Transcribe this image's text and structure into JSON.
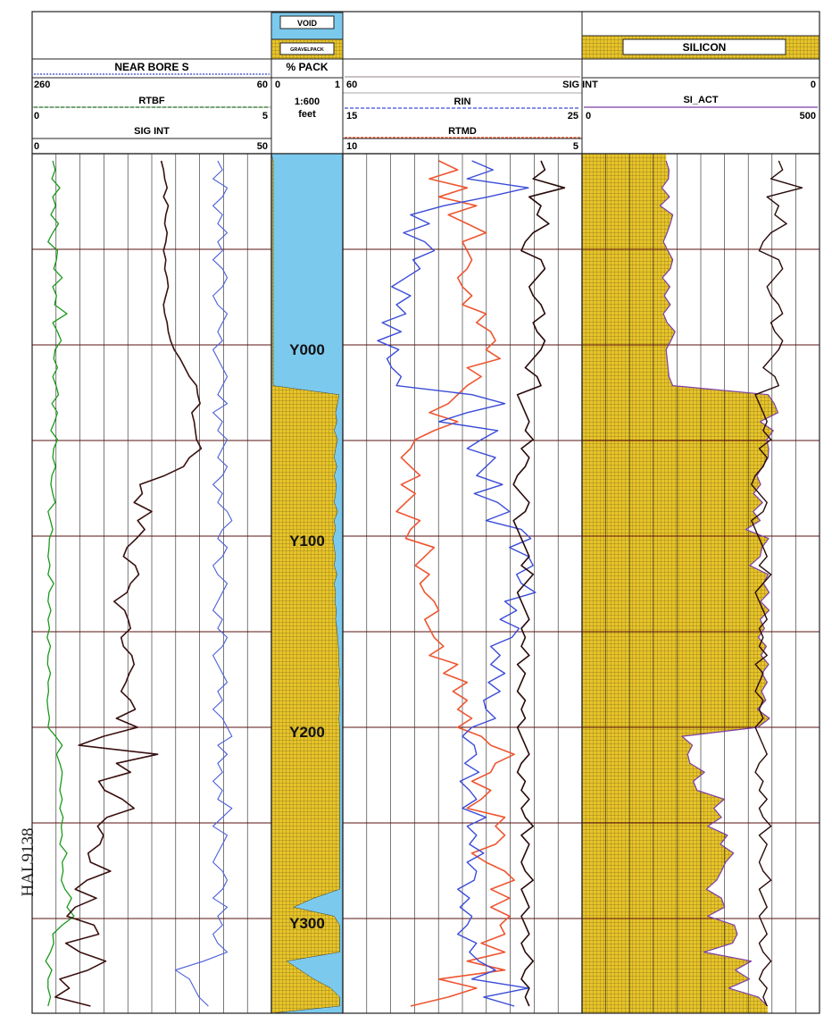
{
  "figure_id": "HAL9138",
  "legend": {
    "void_label": "VOID",
    "gravelpack_label": "GRAVELPACK",
    "silicon_label": "SILICON"
  },
  "headers": {
    "track1": [
      {
        "name": "NEAR BORE S",
        "left": "260",
        "right": "60"
      },
      {
        "name": "RTBF",
        "left": "0",
        "right": "5"
      },
      {
        "name": "SIG INT",
        "left": "0",
        "right": "50"
      }
    ],
    "depth": {
      "name": "% PACK",
      "left": "0",
      "right": "1",
      "scale": "1:600",
      "unit": "feet"
    },
    "track3": [
      {
        "name": "SIG INT",
        "left": "60",
        "right": "",
        "spanning": true
      },
      {
        "name": "RIN",
        "left": "15",
        "right": "25"
      },
      {
        "name": "RTMD",
        "left": "10",
        "right": "5"
      }
    ],
    "track4": [
      {
        "name": "SI_ACT",
        "left": "0",
        "right": "500"
      }
    ],
    "track34_right": "0"
  },
  "depth_labels": [
    "Y000",
    "Y100",
    "Y200",
    "Y300"
  ],
  "colors": {
    "void": "#7cc9ee",
    "gravel": "#e8c42a",
    "gravel_hatch": "#8a7418",
    "rtbf": "#1a9a1a",
    "near_bore": "#3a1010",
    "sig_int_track1": "#4a5fd8",
    "rin": "#3a4cd8",
    "rtmd": "#ee5530",
    "sig_int_track3": "#2a0a0a",
    "si_act_outline": "#7a3fa8",
    "grid": "#222222",
    "depth_grid": "#5a1010"
  },
  "chart_data": {
    "type": "line",
    "depth_axis": {
      "labels": [
        "Y000",
        "Y100",
        "Y200",
        "Y300"
      ],
      "interval": 100
    },
    "tracks": [
      {
        "name": "Track 1",
        "series": [
          {
            "name": "NEAR BORE S",
            "scale": [
              260,
              60
            ],
            "values": [
              152,
              150,
              149,
              147,
              150,
              146,
              148,
              149,
              147,
              148,
              150,
              148,
              149,
              147,
              146,
              148,
              150,
              149,
              147,
              146,
              144,
              141,
              136,
              132,
              128,
              122,
              121,
              119,
              126,
              124,
              123,
              122,
              118,
              128,
              133,
              149,
              170,
              168,
              175,
              160,
              172,
              166,
              173,
              181,
              184,
              174,
              171,
              178,
              181,
              192,
              183,
              180,
              178,
              186,
              184,
              177,
              175,
              179,
              182,
              186,
              178,
              174,
              190,
              172,
              201,
              222,
              155,
              190,
              178,
              205,
              200,
              185,
              175,
              198,
              206,
              201,
              204,
              214,
              212,
              195,
              215,
              225,
              207,
              225,
              232,
              209,
              205,
              233,
              221,
              199,
              214,
              238,
              230,
              242,
              212
            ]
          },
          {
            "name": "RTBF",
            "scale": [
              0,
              5
            ],
            "values": [
              0.4,
              0.45,
              0.38,
              0.55,
              0.4,
              0.46,
              0.36,
              0.52,
              0.4,
              0.3,
              0.5,
              0.48,
              0.42,
              0.6,
              0.4,
              0.48,
              0.44,
              0.7,
              0.4,
              0.5,
              0.58,
              0.45,
              0.42,
              0.5,
              0.4,
              0.47,
              0.52,
              0.38,
              0.5,
              0.44,
              0.36,
              0.5,
              0.42,
              0.4,
              0.46,
              0.38,
              0.36,
              0.4,
              0.45,
              0.3,
              0.35,
              0.4,
              0.33,
              0.32,
              0.3,
              0.34,
              0.3,
              0.42,
              0.32,
              0.3,
              0.36,
              0.3,
              0.33,
              0.28,
              0.35,
              0.3,
              0.29,
              0.35,
              0.3,
              0.31,
              0.28,
              0.3,
              0.33,
              0.3,
              0.46,
              0.6,
              0.48,
              0.55,
              0.6,
              0.58,
              0.55,
              0.6,
              0.55,
              0.62,
              0.58,
              0.6,
              0.55,
              0.7,
              0.6,
              0.62,
              0.58,
              0.66,
              0.8,
              0.7,
              0.85,
              0.6,
              0.4,
              0.42,
              0.35,
              0.25,
              0.38,
              0.3,
              0.3,
              0.35,
              0.3
            ]
          },
          {
            "name": "SIG INT",
            "scale": [
              0,
              50
            ],
            "values": [
              39,
              40,
              38,
              41,
              40,
              38,
              40,
              39,
              41,
              39,
              40,
              38,
              40,
              41,
              40,
              38,
              39,
              41,
              40,
              39,
              40,
              38,
              39,
              40,
              41,
              40,
              39,
              41,
              38,
              40,
              39,
              41,
              40,
              39,
              41,
              40,
              38,
              40,
              39,
              41,
              42,
              40,
              39,
              41,
              40,
              38,
              39,
              41,
              40,
              39,
              38,
              40,
              39,
              41,
              40,
              38,
              39,
              40,
              41,
              39,
              40,
              38,
              40,
              41,
              42,
              39,
              41,
              39,
              40,
              38,
              40,
              39,
              42,
              40,
              38,
              41,
              40,
              39,
              38,
              40,
              41,
              40,
              38,
              41,
              39,
              40,
              38,
              39,
              41,
              36,
              30,
              33,
              34,
              35,
              37
            ]
          }
        ]
      },
      {
        "name": "Track 2",
        "series": [
          {
            "name": "% PACK",
            "scale": [
              0,
              1
            ],
            "values": [
              0,
              0,
              0,
              0,
              0,
              0,
              0,
              0,
              0,
              0,
              0,
              0,
              0,
              0,
              0,
              0,
              0,
              0,
              0,
              0,
              0,
              0,
              0,
              0,
              0,
              0,
              0.97,
              0.95,
              0.92,
              0.94,
              0.9,
              0.95,
              0.92,
              0.9,
              0.94,
              0.9,
              0.93,
              0.92,
              0.9,
              0.95,
              0.9,
              0.92,
              0.88,
              0.9,
              0.92,
              0.9,
              0.94,
              0.9,
              0.92,
              0.91,
              0.93,
              0.92,
              0.94,
              0.95,
              0.96,
              0.97,
              0.97,
              0.98,
              0.97,
              0.98,
              0.98,
              0.98,
              0.97,
              0.98,
              0.98,
              0.98,
              0.98,
              0.98,
              0.98,
              0.98,
              0.98,
              0.98,
              0.98,
              0.98,
              0.98,
              0.98,
              0.98,
              0.98,
              0.98,
              0.98,
              0.98,
              0.98,
              0.6,
              0.3,
              0.9,
              0.98,
              0.98,
              0.98,
              0.98,
              0.2,
              0.4,
              0.6,
              0.85,
              0.98,
              0.98
            ]
          }
        ]
      },
      {
        "name": "Track 3",
        "series": [
          {
            "name": "SIG INT",
            "scale": [
              60,
              0
            ],
            "values": [
              10,
              9,
              12,
              4,
              13,
              10,
              11,
              8,
              12,
              14,
              15,
              10,
              9,
              11,
              13,
              12,
              10,
              9,
              12,
              11,
              9,
              10,
              12,
              14,
              11,
              10,
              16,
              15,
              14,
              13,
              14,
              12,
              15,
              13,
              14,
              16,
              17,
              15,
              13,
              14,
              17,
              16,
              15,
              14,
              13,
              15,
              12,
              14,
              16,
              15,
              14,
              13,
              15,
              14,
              15,
              13,
              16,
              14,
              15,
              16,
              14,
              15,
              14,
              16,
              15,
              14,
              13,
              15,
              16,
              14,
              15,
              13,
              15,
              14,
              12,
              15,
              13,
              14,
              15,
              14,
              12,
              15,
              14,
              13,
              15,
              14,
              13,
              15,
              14,
              12,
              14,
              15,
              13,
              14,
              13
            ]
          },
          {
            "name": "RIN",
            "scale": [
              15,
              25
            ],
            "values": [
              20.4,
              21.3,
              20.2,
              22.8,
              21.1,
              19.2,
              17.8,
              18.6,
              17.5,
              18.4,
              18.8,
              17.9,
              18.2,
              17.6,
              17.0,
              17.8,
              17.2,
              17.6,
              16.6,
              17.4,
              16.4,
              17.3,
              16.8,
              17.0,
              17.4,
              17.2,
              20.4,
              21.8,
              20.2,
              19.0,
              21.5,
              20.8,
              20.2,
              21.4,
              21.0,
              20.6,
              21.7,
              20.5,
              21.5,
              22.0,
              21.0,
              22.5,
              22.9,
              22.0,
              22.8,
              23.0,
              22.3,
              22.5,
              23.1,
              21.8,
              22.3,
              21.6,
              22.4,
              22.1,
              21.2,
              21.6,
              21.2,
              21.8,
              21.1,
              21.6,
              20.9,
              21.0,
              21.4,
              20.4,
              20.0,
              20.5,
              20.6,
              20.1,
              20.7,
              19.9,
              20.3,
              20.6,
              20.0,
              21.0,
              20.2,
              20.6,
              20.3,
              20.9,
              20.2,
              20.6,
              20.5,
              19.8,
              20.3,
              19.9,
              20.4,
              20.2,
              19.8,
              20.6,
              20.3,
              20.7,
              21.4,
              20.4,
              22.8,
              20.9,
              22.2
            ]
          },
          {
            "name": "RTMD",
            "scale": [
              10,
              5
            ],
            "values": [
              8.0,
              7.6,
              8.2,
              7.4,
              8.0,
              7.2,
              7.8,
              7.4,
              7.0,
              7.5,
              7.4,
              7.3,
              7.4,
              7.6,
              7.5,
              7.3,
              7.5,
              7.0,
              7.2,
              6.9,
              6.8,
              7.0,
              6.7,
              7.4,
              7.1,
              7.4,
              7.6,
              7.8,
              8.2,
              7.6,
              8.1,
              8.5,
              8.6,
              8.8,
              8.6,
              8.4,
              8.8,
              8.5,
              8.7,
              8.9,
              8.4,
              8.6,
              8.7,
              8.1,
              8.3,
              8.5,
              8.2,
              8.4,
              8.3,
              8.1,
              8.0,
              8.3,
              8.2,
              8.1,
              7.9,
              8.2,
              7.6,
              7.9,
              7.4,
              7.7,
              7.4,
              7.6,
              7.3,
              7.6,
              7.1,
              6.9,
              6.4,
              6.8,
              6.9,
              7.3,
              6.9,
              7.1,
              7.4,
              6.6,
              6.8,
              6.6,
              6.8,
              7.3,
              7.0,
              6.6,
              6.4,
              6.9,
              6.5,
              6.9,
              6.5,
              6.7,
              6.6,
              7.1,
              6.6,
              7.4,
              6.6,
              8.0,
              7.2,
              7.8,
              8.6
            ]
          }
        ]
      },
      {
        "name": "Track 4",
        "series": [
          {
            "name": "SI_ACT",
            "scale": [
              0,
              500
            ],
            "fill": true,
            "values": [
              176,
              182,
              181,
              167,
              183,
              163,
              190,
              185,
              178,
              170,
              180,
              190,
              185,
              168,
              184,
              172,
              185,
              170,
              178,
              195,
              186,
              176,
              178,
              180,
              182,
              190,
              394,
              407,
              415,
              377,
              405,
              391,
              395,
              394,
              382,
              370,
              378,
              363,
              382,
              362,
              377,
              346,
              395,
              381,
              377,
              355,
              394,
              384,
              396,
              378,
              396,
              377,
              386,
              373,
              390,
              379,
              395,
              381,
              392,
              380,
              389,
              371,
              397,
              372,
              210,
              232,
              222,
              227,
              258,
              234,
              242,
              300,
              278,
              294,
              265,
              307,
              292,
              320,
              303,
              294,
              284,
              262,
              294,
              301,
              265,
              322,
              328,
              318,
              257,
              358,
              324,
              354,
              310,
              373,
              393
            ]
          }
        ]
      }
    ]
  }
}
